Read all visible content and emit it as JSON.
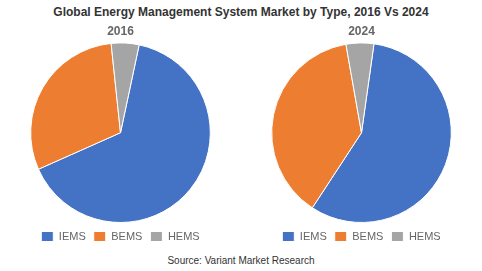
{
  "chart_data": {
    "type": "pie",
    "title": "Global Energy Management System Market by Type, 2016 Vs 2024",
    "annotations": [
      "Source: Variant Market Research"
    ],
    "categories": [
      "IEMS",
      "BEMS",
      "HEMS"
    ],
    "colors": [
      "#4472C4",
      "#ED7D31",
      "#A5A5A5"
    ],
    "series": [
      {
        "name": "2016",
        "values": [
          65,
          30,
          5
        ]
      },
      {
        "name": "2024",
        "values": [
          57,
          38,
          5
        ]
      }
    ],
    "legend": "bottom"
  }
}
